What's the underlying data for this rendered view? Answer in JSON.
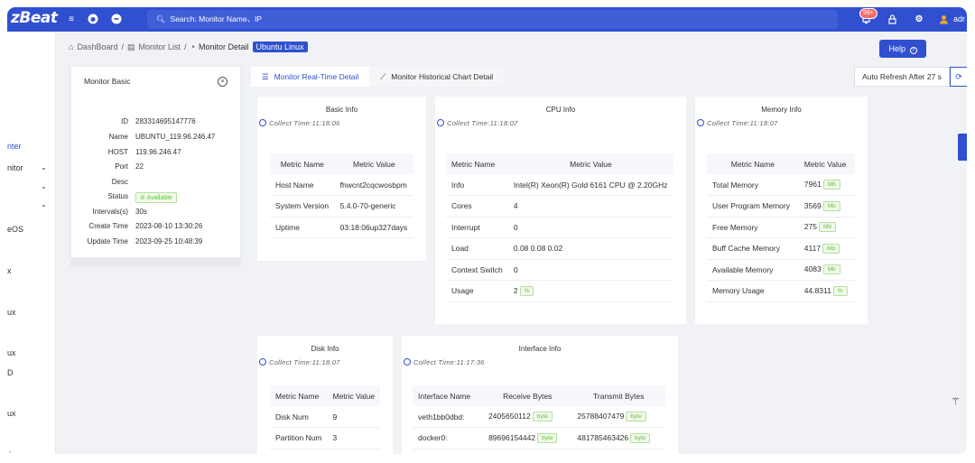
{
  "header": {
    "logo": "zBeat",
    "search_placeholder": "Search: Monitor Name、IP",
    "notification_badge": "99+",
    "user": "adr"
  },
  "sidebar": {
    "items": [
      "nter",
      "nitor",
      "",
      "eOS",
      "x",
      "ux",
      "ux",
      "D",
      "ux",
      "s"
    ]
  },
  "breadcrumb": {
    "home": "DashBoard",
    "sep": "/",
    "list": "Monitor List",
    "detail": "Monitor Detail",
    "tag": "Ubuntu Linux"
  },
  "help_label": "Help",
  "basic": {
    "title": "Monitor Basic",
    "rows": [
      {
        "k": "ID",
        "v": "283314695147776"
      },
      {
        "k": "Name",
        "v": "UBUNTU_119.96.246.47"
      },
      {
        "k": "HOST",
        "v": "119.96.246.47"
      },
      {
        "k": "Port",
        "v": "22"
      },
      {
        "k": "Desc",
        "v": ""
      },
      {
        "k": "Status",
        "v": "Available"
      },
      {
        "k": "Intervals(s)",
        "v": "30s"
      },
      {
        "k": "Create Time",
        "v": "2023-08-10 13:30:26"
      },
      {
        "k": "Update Time",
        "v": "2023-09-25 10:48:39"
      }
    ]
  },
  "tabs": {
    "realtime": "Monitor Real-Time Detail",
    "historical": "Monitor Historical Chart Detail"
  },
  "auto_refresh": "Auto Refresh After 27 s",
  "basic_info": {
    "title": "Basic Info",
    "collect": "Collect Time:11:18:06",
    "h1": "Metric Name",
    "h2": "Metric Value",
    "rows": [
      [
        "Host Name",
        "fhwcnt2cqcwosbpm"
      ],
      [
        "System Version",
        "5.4.0-70-generic"
      ],
      [
        "Uptime",
        "03:18:06up327days"
      ]
    ]
  },
  "cpu_info": {
    "title": "CPU Info",
    "collect": "Collect Time:11:18:07",
    "h1": "Metric Name",
    "h2": "Metric Value",
    "rows": [
      [
        "Info",
        "Intel(R) Xeon(R) Gold 6161 CPU @ 2.20GHz",
        ""
      ],
      [
        "Cores",
        "4",
        ""
      ],
      [
        "Interrupt",
        "0",
        ""
      ],
      [
        "Load",
        "0.08 0.08 0.02",
        ""
      ],
      [
        "Context Switch",
        "0",
        ""
      ],
      [
        "Usage",
        "2",
        "%"
      ]
    ]
  },
  "memory_info": {
    "title": "Memory Info",
    "collect": "Collect Time:11:18:07",
    "h1": "Metric Name",
    "h2": "Metric Value",
    "rows": [
      [
        "Total Memory",
        "7961",
        "Mb"
      ],
      [
        "User Program Memory",
        "3569",
        "Mb"
      ],
      [
        "Free Memory",
        "275",
        "Mb"
      ],
      [
        "Buff Cache Memory",
        "4117",
        "Mb"
      ],
      [
        "Available Memory",
        "4083",
        "Mb"
      ],
      [
        "Memory Usage",
        "44.8311",
        "%"
      ]
    ]
  },
  "disk_info": {
    "title": "Disk Info",
    "collect": "Collect Time:11:18:07",
    "h1": "Metric Name",
    "h2": "Metric Value",
    "rows": [
      [
        "Disk Num",
        "9"
      ],
      [
        "Partition Num",
        "3"
      ]
    ]
  },
  "interface_info": {
    "title": "Interface Info",
    "collect": "Collect Time:11:17:36",
    "h1": "Interface Name",
    "h2": "Receive Bytes",
    "h3": "Transmit Bytes",
    "unit": "byte",
    "rows": [
      [
        "veth1bb0dbd:",
        "2405650112",
        "25788407479"
      ],
      [
        "docker0:",
        "89696154442",
        "481785463426"
      ]
    ]
  },
  "colors": {
    "primary": "#3050d0",
    "success": "#67c23a",
    "danger": "#f56c6c"
  }
}
